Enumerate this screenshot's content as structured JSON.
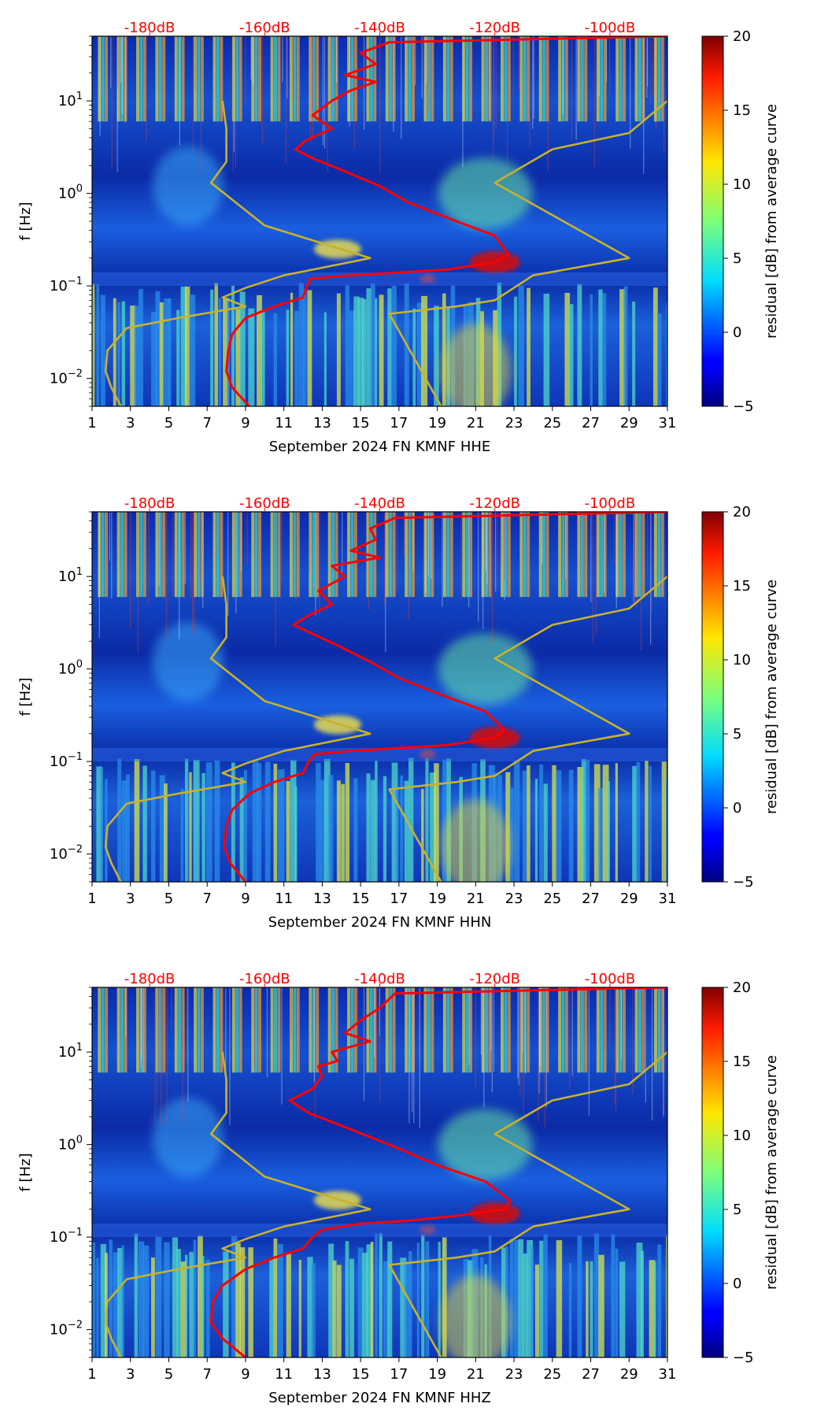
{
  "chart_data": [
    {
      "type": "heatmap",
      "title": "",
      "xlabel": "September 2024 FN KMNF  HHE",
      "ylabel": "f [Hz]",
      "x_ticks": [
        "1",
        "3",
        "5",
        "7",
        "9",
        "11",
        "13",
        "15",
        "17",
        "19",
        "21",
        "23",
        "25",
        "27",
        "29",
        "31"
      ],
      "x_range": [
        1,
        31
      ],
      "y_ticks": [
        "10^-2",
        "10^-1",
        "10^0",
        "10^1"
      ],
      "y_range": [
        0.005,
        50
      ],
      "y_scale": "log",
      "top_db_labels": [
        "-180dB",
        "-160dB",
        "-140dB",
        "-120dB",
        "-100dB"
      ],
      "colorbar": {
        "label": "residual [dB] from average curve",
        "range": [
          -5,
          20
        ],
        "ticks": [
          "20",
          "15",
          "10",
          "5",
          "0",
          "−5"
        ]
      },
      "overlay_curves": [
        {
          "name": "average noise curve",
          "color": "#ff0000",
          "points": [
            [
              9.2,
              0.005
            ],
            [
              8.3,
              0.008
            ],
            [
              8.0,
              0.012
            ],
            [
              8.1,
              0.02
            ],
            [
              8.3,
              0.03
            ],
            [
              9.0,
              0.045
            ],
            [
              10.5,
              0.06
            ],
            [
              12.0,
              0.075
            ],
            [
              12.2,
              0.1
            ],
            [
              12.4,
              0.12
            ],
            [
              14.5,
              0.13
            ],
            [
              17.0,
              0.14
            ],
            [
              19.5,
              0.15
            ],
            [
              22.0,
              0.18
            ],
            [
              22.7,
              0.22
            ],
            [
              22.0,
              0.35
            ],
            [
              20.0,
              0.5
            ],
            [
              17.5,
              0.8
            ],
            [
              16.0,
              1.2
            ],
            [
              14.0,
              1.8
            ],
            [
              12.5,
              2.4
            ],
            [
              11.6,
              3.0
            ],
            [
              12.2,
              3.8
            ],
            [
              13.5,
              5
            ],
            [
              12.5,
              7
            ],
            [
              13.5,
              10
            ],
            [
              14.5,
              13
            ],
            [
              15.8,
              16
            ],
            [
              14.2,
              19
            ],
            [
              15.8,
              25
            ],
            [
              15.0,
              33
            ],
            [
              16.5,
              43
            ],
            [
              31,
              50
            ]
          ]
        },
        {
          "name": "NLNM",
          "color": "#c8b22a",
          "points": [
            [
              2.5,
              0.005
            ],
            [
              2.0,
              0.008
            ],
            [
              1.7,
              0.012
            ],
            [
              1.8,
              0.02
            ],
            [
              2.8,
              0.035
            ],
            [
              5.5,
              0.045
            ],
            [
              9.0,
              0.06
            ],
            [
              7.8,
              0.075
            ],
            [
              9.0,
              0.095
            ],
            [
              11.0,
              0.13
            ],
            [
              15.5,
              0.2
            ],
            [
              10.0,
              0.45
            ],
            [
              7.2,
              1.3
            ],
            [
              8.0,
              2.2
            ],
            [
              8.0,
              5
            ],
            [
              7.8,
              10
            ]
          ]
        },
        {
          "name": "NHNM",
          "color": "#c8b22a",
          "points": [
            [
              19.2,
              0.005
            ],
            [
              16.5,
              0.05
            ],
            [
              20.0,
              0.06
            ],
            [
              22.0,
              0.07
            ],
            [
              24.0,
              0.13
            ],
            [
              29.0,
              0.2
            ],
            [
              22.0,
              1.3
            ],
            [
              25.0,
              3.0
            ],
            [
              29.0,
              4.5
            ],
            [
              31.0,
              10
            ]
          ]
        }
      ]
    },
    {
      "type": "heatmap",
      "title": "",
      "xlabel": "September 2024 FN KMNF  HHN",
      "ylabel": "f [Hz]",
      "x_ticks": [
        "1",
        "3",
        "5",
        "7",
        "9",
        "11",
        "13",
        "15",
        "17",
        "19",
        "21",
        "23",
        "25",
        "27",
        "29",
        "31"
      ],
      "x_range": [
        1,
        31
      ],
      "y_ticks": [
        "10^-2",
        "10^-1",
        "10^0",
        "10^1"
      ],
      "y_range": [
        0.005,
        50
      ],
      "y_scale": "log",
      "top_db_labels": [
        "-180dB",
        "-160dB",
        "-140dB",
        "-120dB",
        "-100dB"
      ],
      "colorbar": {
        "label": "residual [dB] from average curve",
        "range": [
          -5,
          20
        ],
        "ticks": [
          "20",
          "15",
          "10",
          "5",
          "0",
          "−5"
        ]
      },
      "overlay_curves": [
        {
          "name": "average noise curve",
          "color": "#ff0000",
          "points": [
            [
              9.0,
              0.005
            ],
            [
              8.2,
              0.008
            ],
            [
              7.9,
              0.012
            ],
            [
              8.0,
              0.02
            ],
            [
              8.3,
              0.03
            ],
            [
              9.2,
              0.045
            ],
            [
              10.5,
              0.06
            ],
            [
              12.0,
              0.075
            ],
            [
              12.3,
              0.1
            ],
            [
              12.6,
              0.12
            ],
            [
              14.5,
              0.13
            ],
            [
              17.0,
              0.14
            ],
            [
              19.5,
              0.15
            ],
            [
              22.0,
              0.18
            ],
            [
              22.5,
              0.22
            ],
            [
              21.5,
              0.35
            ],
            [
              19.5,
              0.5
            ],
            [
              17.0,
              0.8
            ],
            [
              15.5,
              1.2
            ],
            [
              13.8,
              1.8
            ],
            [
              12.5,
              2.4
            ],
            [
              11.5,
              3.0
            ],
            [
              12.3,
              3.8
            ],
            [
              13.5,
              5
            ],
            [
              12.8,
              7
            ],
            [
              14.2,
              10
            ],
            [
              13.5,
              13
            ],
            [
              16.0,
              16
            ],
            [
              14.5,
              19
            ],
            [
              15.8,
              25
            ],
            [
              15.5,
              33
            ],
            [
              16.8,
              43
            ],
            [
              31,
              50
            ]
          ]
        },
        {
          "name": "NLNM",
          "color": "#c8b22a",
          "points": [
            [
              2.5,
              0.005
            ],
            [
              2.0,
              0.008
            ],
            [
              1.7,
              0.012
            ],
            [
              1.8,
              0.02
            ],
            [
              2.8,
              0.035
            ],
            [
              5.5,
              0.045
            ],
            [
              9.0,
              0.06
            ],
            [
              7.8,
              0.075
            ],
            [
              9.0,
              0.095
            ],
            [
              11.0,
              0.13
            ],
            [
              15.5,
              0.2
            ],
            [
              10.0,
              0.45
            ],
            [
              7.2,
              1.3
            ],
            [
              8.0,
              2.2
            ],
            [
              8.0,
              5
            ],
            [
              7.8,
              10
            ]
          ]
        },
        {
          "name": "NHNM",
          "color": "#c8b22a",
          "points": [
            [
              19.2,
              0.005
            ],
            [
              16.5,
              0.05
            ],
            [
              20.0,
              0.06
            ],
            [
              22.0,
              0.07
            ],
            [
              24.0,
              0.13
            ],
            [
              29.0,
              0.2
            ],
            [
              22.0,
              1.3
            ],
            [
              25.0,
              3.0
            ],
            [
              29.0,
              4.5
            ],
            [
              31.0,
              10
            ]
          ]
        }
      ]
    },
    {
      "type": "heatmap",
      "title": "",
      "xlabel": "September 2024 FN KMNF  HHZ",
      "ylabel": "f [Hz]",
      "x_ticks": [
        "1",
        "3",
        "5",
        "7",
        "9",
        "11",
        "13",
        "15",
        "17",
        "19",
        "21",
        "23",
        "25",
        "27",
        "29",
        "31"
      ],
      "x_range": [
        1,
        31
      ],
      "y_ticks": [
        "10^-2",
        "10^-1",
        "10^0",
        "10^1"
      ],
      "y_range": [
        0.005,
        50
      ],
      "y_scale": "log",
      "top_db_labels": [
        "-180dB",
        "-160dB",
        "-140dB",
        "-120dB",
        "-100dB"
      ],
      "colorbar": {
        "label": "residual [dB] from average curve",
        "range": [
          -5,
          20
        ],
        "ticks": [
          "20",
          "15",
          "10",
          "5",
          "0",
          "−5"
        ]
      },
      "overlay_curves": [
        {
          "name": "average noise curve",
          "color": "#ff0000",
          "points": [
            [
              9.0,
              0.005
            ],
            [
              7.8,
              0.008
            ],
            [
              7.2,
              0.012
            ],
            [
              7.3,
              0.02
            ],
            [
              7.8,
              0.03
            ],
            [
              9.0,
              0.045
            ],
            [
              10.5,
              0.06
            ],
            [
              12.0,
              0.075
            ],
            [
              12.5,
              0.1
            ],
            [
              13.0,
              0.12
            ],
            [
              15.0,
              0.14
            ],
            [
              17.5,
              0.15
            ],
            [
              20.0,
              0.17
            ],
            [
              22.5,
              0.2
            ],
            [
              22.8,
              0.25
            ],
            [
              21.5,
              0.4
            ],
            [
              19.0,
              0.6
            ],
            [
              16.5,
              1.0
            ],
            [
              14.0,
              1.6
            ],
            [
              12.3,
              2.2
            ],
            [
              11.3,
              3.0
            ],
            [
              12.5,
              4.0
            ],
            [
              13.0,
              5.5
            ],
            [
              12.8,
              7
            ],
            [
              13.8,
              8
            ],
            [
              13.5,
              10
            ],
            [
              15.5,
              13
            ],
            [
              14.2,
              16
            ],
            [
              15.0,
              22
            ],
            [
              16.0,
              30
            ],
            [
              16.8,
              43
            ],
            [
              31,
              50
            ]
          ]
        },
        {
          "name": "NLNM",
          "color": "#c8b22a",
          "points": [
            [
              2.5,
              0.005
            ],
            [
              2.0,
              0.008
            ],
            [
              1.7,
              0.012
            ],
            [
              1.8,
              0.02
            ],
            [
              2.8,
              0.035
            ],
            [
              5.5,
              0.045
            ],
            [
              9.0,
              0.06
            ],
            [
              7.8,
              0.075
            ],
            [
              9.0,
              0.095
            ],
            [
              11.0,
              0.13
            ],
            [
              15.5,
              0.2
            ],
            [
              10.0,
              0.45
            ],
            [
              7.2,
              1.3
            ],
            [
              8.0,
              2.2
            ],
            [
              8.0,
              5
            ],
            [
              7.8,
              10
            ]
          ]
        },
        {
          "name": "NHNM",
          "color": "#c8b22a",
          "points": [
            [
              19.2,
              0.005
            ],
            [
              16.5,
              0.05
            ],
            [
              20.0,
              0.06
            ],
            [
              22.0,
              0.07
            ],
            [
              24.0,
              0.13
            ],
            [
              29.0,
              0.2
            ],
            [
              22.0,
              1.3
            ],
            [
              25.0,
              3.0
            ],
            [
              29.0,
              4.5
            ],
            [
              31.0,
              10
            ]
          ]
        }
      ]
    }
  ]
}
